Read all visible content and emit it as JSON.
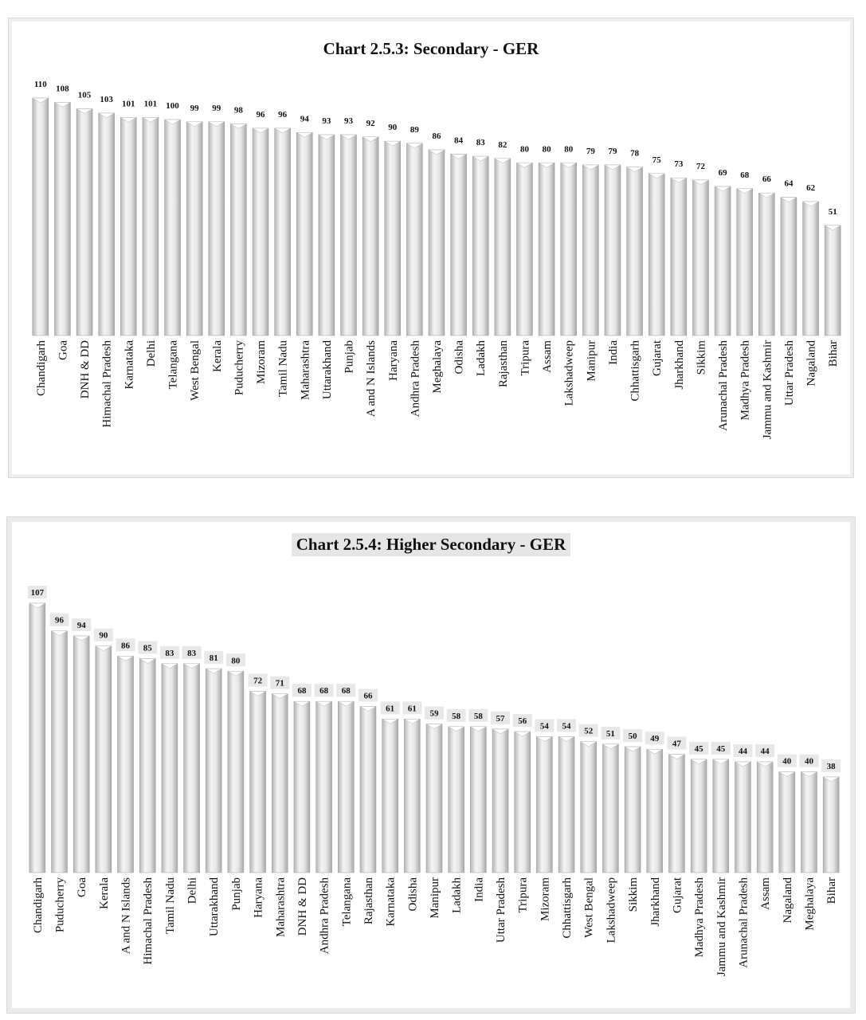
{
  "chart_data": [
    {
      "type": "bar",
      "title": "Chart 2.5.3: Secondary - GER",
      "categories": [
        "Chandigarh",
        "Goa",
        "DNH & DD",
        "Himachal Pradesh",
        "Karnataka",
        "Delhi",
        "Telangana",
        "West Bengal",
        "Kerala",
        "Puducherry",
        "Mizoram",
        "Tamil Nadu",
        "Maharashtra",
        "Uttarakhand",
        "Punjab",
        "A and N Islands",
        "Haryana",
        "Andhra Pradesh",
        "Meghalaya",
        "Odisha",
        "Ladakh",
        "Rajasthan",
        "Tripura",
        "Assam",
        "Lakshadweep",
        "Manipur",
        "India",
        "Chhattisgarh",
        "Gujarat",
        "Jharkhand",
        "Sikkim",
        "Arunachal Pradesh",
        "Madhya Pradesh",
        "Jammu and Kashmir",
        "Uttar Pradesh",
        "Nagaland",
        "Bihar"
      ],
      "values": [
        110,
        108,
        105,
        103,
        101,
        101,
        100,
        99,
        99,
        98,
        96,
        96,
        94,
        93,
        93,
        92,
        90,
        89,
        86,
        84,
        83,
        82,
        80,
        80,
        80,
        79,
        79,
        78,
        75,
        73,
        72,
        69,
        68,
        66,
        64,
        62,
        51
      ],
      "xlabel": "",
      "ylabel": "",
      "ylim": [
        0,
        110
      ],
      "grid": false,
      "legend": "none",
      "bar_color": "#d9d9d9"
    },
    {
      "type": "bar",
      "title": "Chart 2.5.4: Higher Secondary - GER",
      "categories": [
        "Chandigarh",
        "Puducherry",
        "Goa",
        "Kerala",
        "A and N Islands",
        "Himachal Pradesh",
        "Tamil Nadu",
        "Delhi",
        "Uttarakhand",
        "Punjab",
        "Haryana",
        "Maharashtra",
        "DNH & DD",
        "Andhra Pradesh",
        "Telangana",
        "Rajasthan",
        "Karnataka",
        "Odisha",
        "Manipur",
        "Ladakh",
        "India",
        "Uttar Pradesh",
        "Tripura",
        "Mizoram",
        "Chhattisgarh",
        "West Bengal",
        "Lakshadweep",
        "Sikkim",
        "Jharkhand",
        "Gujarat",
        "Madhya Pradesh",
        "Jammu and Kashmir",
        "Arunachal Pradesh",
        "Assam",
        "Nagaland",
        "Meghalaya",
        "Bihar"
      ],
      "values": [
        107,
        96,
        94,
        90,
        86,
        85,
        83,
        83,
        81,
        80,
        72,
        71,
        68,
        68,
        68,
        66,
        61,
        61,
        59,
        58,
        58,
        57,
        56,
        54,
        54,
        52,
        51,
        50,
        49,
        47,
        45,
        45,
        44,
        44,
        40,
        40,
        38
      ],
      "xlabel": "",
      "ylabel": "",
      "ylim": [
        0,
        107
      ],
      "grid": false,
      "legend": "none",
      "bar_color": "#d9d9d9"
    }
  ]
}
